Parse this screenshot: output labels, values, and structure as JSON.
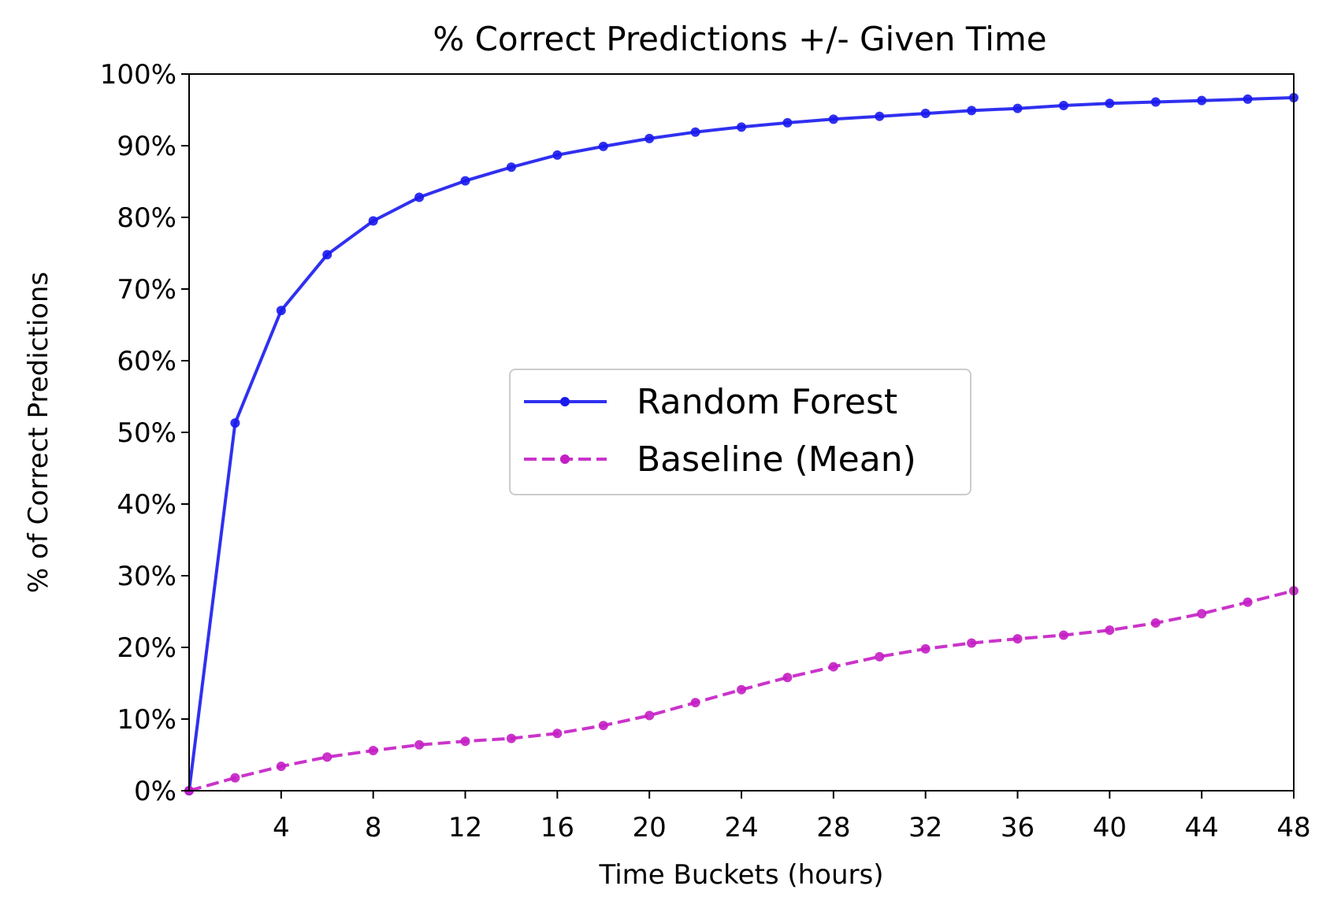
{
  "chart_data": {
    "type": "line",
    "title": "% Correct Predictions +/- Given Time",
    "xlabel": "Time Buckets (hours)",
    "ylabel": "% of Correct Predictions",
    "xlim": [
      0,
      48
    ],
    "ylim": [
      0,
      100
    ],
    "x_ticks": [
      4,
      8,
      12,
      16,
      20,
      24,
      28,
      32,
      36,
      40,
      44,
      48
    ],
    "y_ticks": [
      0,
      10,
      20,
      30,
      40,
      50,
      60,
      70,
      80,
      90,
      100
    ],
    "y_tick_labels": [
      "0%",
      "10%",
      "20%",
      "30%",
      "40%",
      "50%",
      "60%",
      "70%",
      "80%",
      "90%",
      "100%"
    ],
    "x": [
      0,
      2,
      4,
      6,
      8,
      10,
      12,
      14,
      16,
      18,
      20,
      22,
      24,
      26,
      28,
      30,
      32,
      34,
      36,
      38,
      40,
      42,
      44,
      46,
      48
    ],
    "grid": false,
    "legend_position": "center",
    "series": [
      {
        "name": "Random Forest",
        "color": "#1a1aee",
        "line_style": "solid",
        "marker": "circle",
        "values": [
          0,
          51.3,
          67.0,
          74.8,
          79.5,
          82.8,
          85.1,
          87.0,
          88.7,
          89.9,
          91.0,
          91.9,
          92.6,
          93.2,
          93.7,
          94.1,
          94.5,
          94.9,
          95.2,
          95.6,
          95.9,
          96.1,
          96.3,
          96.5,
          96.7
        ]
      },
      {
        "name": "Baseline (Mean)",
        "color": "#c41ec4",
        "line_style": "dashed",
        "marker": "circle",
        "values": [
          0,
          1.8,
          3.4,
          4.7,
          5.6,
          6.4,
          6.9,
          7.3,
          8.0,
          9.1,
          10.5,
          12.3,
          14.1,
          15.8,
          17.3,
          18.7,
          19.8,
          20.6,
          21.2,
          21.7,
          22.4,
          23.4,
          24.7,
          26.3,
          27.9
        ]
      }
    ]
  }
}
